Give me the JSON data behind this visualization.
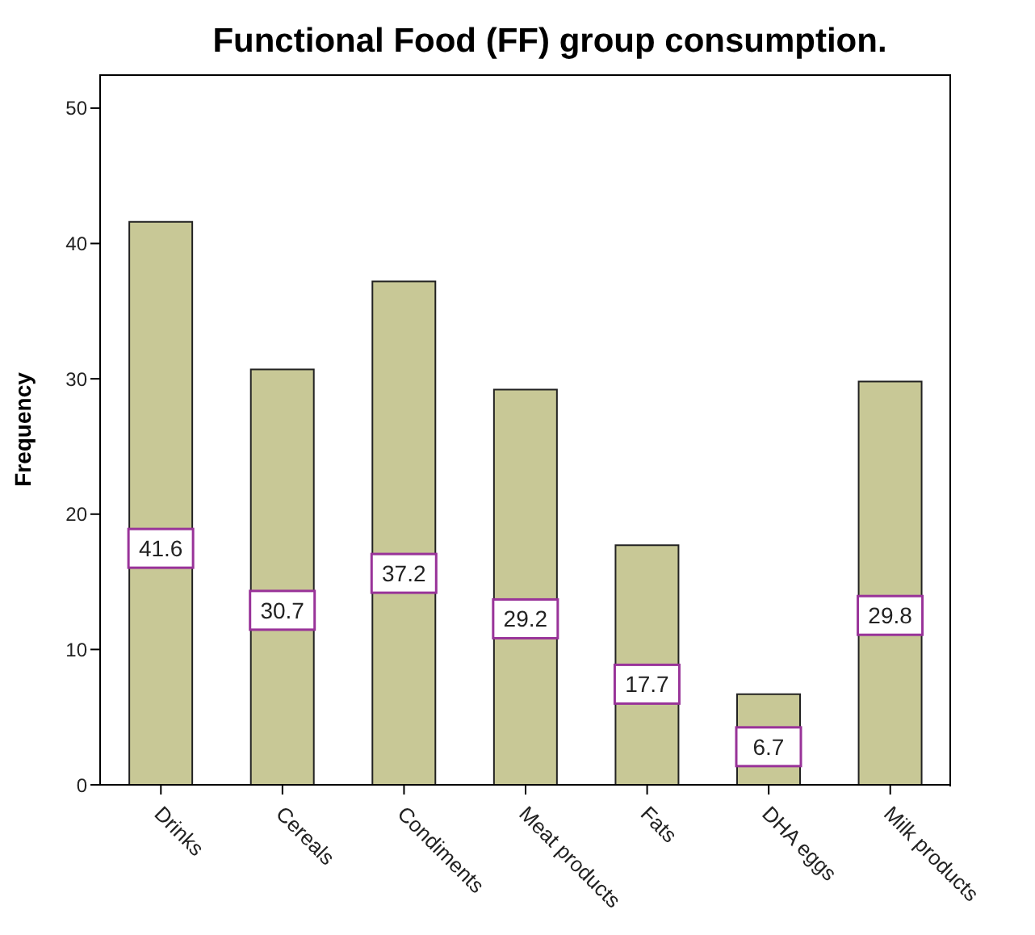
{
  "chart_data": {
    "type": "bar",
    "title": "Functional Food (FF) group consumption.",
    "ylabel": "Frequency",
    "categories": [
      "Drinks",
      "Cereals",
      "Condiments",
      "Meat products",
      "Fats",
      "DHA eggs",
      "Milk products"
    ],
    "values": [
      41.6,
      30.7,
      37.2,
      29.2,
      17.7,
      6.7,
      29.8
    ],
    "color": "#c8c896",
    "ylim": [
      0,
      52.5
    ],
    "yticks": [
      0,
      10,
      20,
      30,
      40,
      50
    ],
    "grid": false,
    "legend": false,
    "data_labels": true
  }
}
